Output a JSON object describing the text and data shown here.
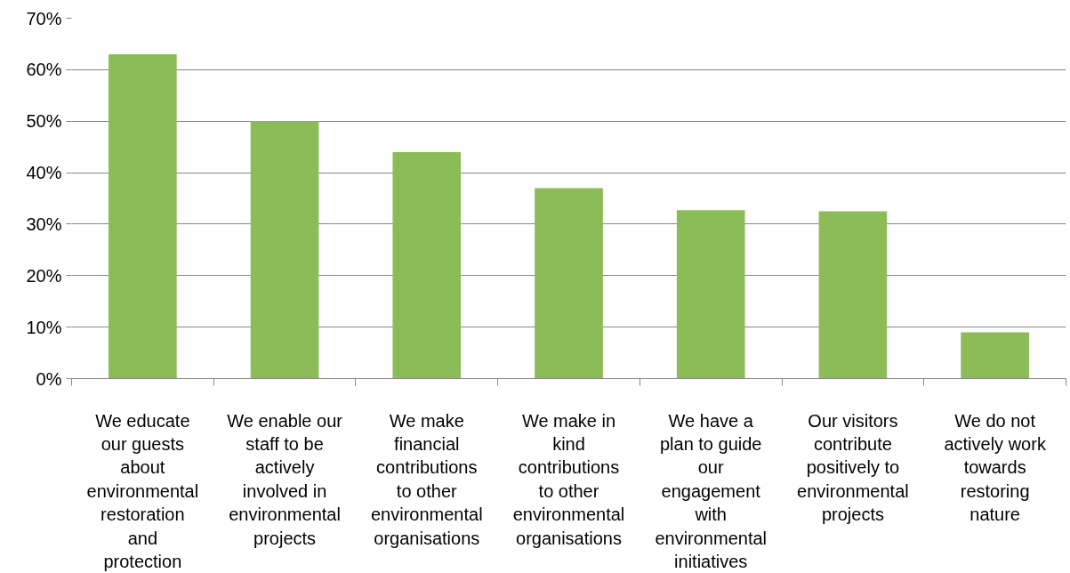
{
  "chart_data": {
    "type": "bar",
    "categories": [
      "We educate our guests about environmental restoration and protection",
      "We enable our staff to be actively involved in environmental projects",
      "We make financial contributions to other environmental organisations",
      "We make in kind contributions to other environmental organisations",
      "We have a plan to guide our engagement with environmental initiatives",
      "Our visitors contribute positively to environmental projects",
      "We do not actively work towards restoring nature"
    ],
    "values": [
      63,
      50,
      44,
      37,
      32.7,
      32.5,
      9
    ],
    "color": "#8cbc58",
    "ylim": [
      0,
      70
    ],
    "yticks": [
      {
        "value": 0,
        "label": "0%"
      },
      {
        "value": 10,
        "label": "10%"
      },
      {
        "value": 20,
        "label": "20%"
      },
      {
        "value": 30,
        "label": "30%"
      },
      {
        "value": 40,
        "label": "40%"
      },
      {
        "value": 50,
        "label": "50%"
      },
      {
        "value": 60,
        "label": "60%"
      },
      {
        "value": 70,
        "label": "70%"
      }
    ],
    "grid": "y"
  }
}
